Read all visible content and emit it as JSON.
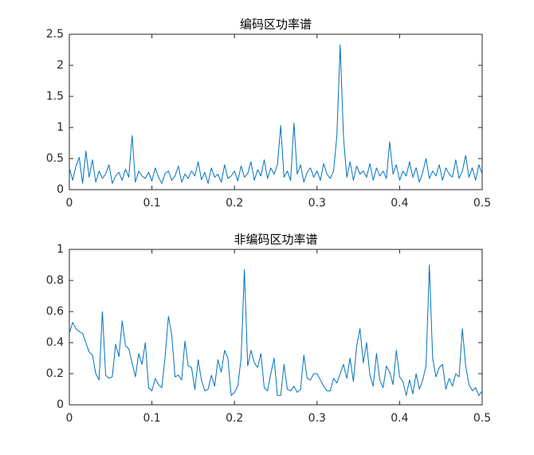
{
  "chart_data": [
    {
      "type": "line",
      "title": "编码区功率谱",
      "x": [
        0,
        0.004,
        0.008,
        0.012,
        0.016,
        0.02,
        0.024,
        0.028,
        0.032,
        0.036,
        0.04,
        0.044,
        0.048,
        0.052,
        0.056,
        0.06,
        0.064,
        0.068,
        0.072,
        0.076,
        0.08,
        0.084,
        0.088,
        0.092,
        0.096,
        0.1,
        0.104,
        0.108,
        0.112,
        0.116,
        0.12,
        0.124,
        0.128,
        0.132,
        0.136,
        0.14,
        0.144,
        0.148,
        0.152,
        0.156,
        0.16,
        0.164,
        0.168,
        0.172,
        0.176,
        0.18,
        0.184,
        0.188,
        0.192,
        0.196,
        0.2,
        0.204,
        0.208,
        0.212,
        0.216,
        0.22,
        0.224,
        0.228,
        0.232,
        0.236,
        0.24,
        0.244,
        0.248,
        0.252,
        0.256,
        0.26,
        0.264,
        0.268,
        0.272,
        0.276,
        0.28,
        0.284,
        0.288,
        0.292,
        0.296,
        0.3,
        0.304,
        0.308,
        0.312,
        0.316,
        0.32,
        0.324,
        0.328,
        0.332,
        0.336,
        0.34,
        0.344,
        0.348,
        0.352,
        0.356,
        0.36,
        0.364,
        0.368,
        0.372,
        0.376,
        0.38,
        0.384,
        0.388,
        0.392,
        0.396,
        0.4,
        0.404,
        0.408,
        0.412,
        0.416,
        0.42,
        0.424,
        0.428,
        0.432,
        0.436,
        0.44,
        0.444,
        0.448,
        0.452,
        0.456,
        0.46,
        0.464,
        0.468,
        0.472,
        0.476,
        0.48,
        0.484,
        0.488,
        0.492,
        0.496,
        0.5
      ],
      "values": [
        0.35,
        0.15,
        0.38,
        0.52,
        0.1,
        0.62,
        0.2,
        0.48,
        0.12,
        0.3,
        0.18,
        0.25,
        0.4,
        0.1,
        0.22,
        0.28,
        0.15,
        0.33,
        0.2,
        0.87,
        0.12,
        0.3,
        0.22,
        0.18,
        0.28,
        0.14,
        0.35,
        0.2,
        0.1,
        0.26,
        0.3,
        0.15,
        0.22,
        0.38,
        0.12,
        0.25,
        0.18,
        0.3,
        0.22,
        0.45,
        0.16,
        0.28,
        0.1,
        0.35,
        0.2,
        0.25,
        0.12,
        0.4,
        0.18,
        0.22,
        0.3,
        0.14,
        0.38,
        0.2,
        0.26,
        0.45,
        0.15,
        0.32,
        0.22,
        0.48,
        0.18,
        0.35,
        0.25,
        0.4,
        1.03,
        0.2,
        0.3,
        0.15,
        1.07,
        0.25,
        0.4,
        0.12,
        0.28,
        0.35,
        0.2,
        0.3,
        0.15,
        0.42,
        0.25,
        0.18,
        0.3,
        0.86,
        2.33,
        0.85,
        0.2,
        0.45,
        0.15,
        0.38,
        0.25,
        0.3,
        0.2,
        0.42,
        0.15,
        0.35,
        0.22,
        0.3,
        0.18,
        0.77,
        0.25,
        0.4,
        0.15,
        0.3,
        0.22,
        0.45,
        0.2,
        0.35,
        0.12,
        0.28,
        0.5,
        0.18,
        0.3,
        0.22,
        0.4,
        0.15,
        0.35,
        0.25,
        0.2,
        0.48,
        0.18,
        0.3,
        0.55,
        0.2,
        0.35,
        0.15,
        0.4,
        0.25
      ],
      "color": "#0072bd",
      "xlim": [
        0,
        0.5
      ],
      "xticks": [
        0,
        0.1,
        0.2,
        0.3,
        0.4,
        0.5
      ],
      "ylim": [
        0,
        2.5
      ],
      "yticks": [
        0,
        0.5,
        1,
        1.5,
        2,
        2.5
      ]
    },
    {
      "type": "line",
      "title": "非编码区功率谱",
      "x": [
        0,
        0.004,
        0.008,
        0.012,
        0.016,
        0.02,
        0.024,
        0.028,
        0.032,
        0.036,
        0.04,
        0.044,
        0.048,
        0.052,
        0.056,
        0.06,
        0.064,
        0.068,
        0.072,
        0.076,
        0.08,
        0.084,
        0.088,
        0.092,
        0.096,
        0.1,
        0.104,
        0.108,
        0.112,
        0.116,
        0.12,
        0.124,
        0.128,
        0.132,
        0.136,
        0.14,
        0.144,
        0.148,
        0.152,
        0.156,
        0.16,
        0.164,
        0.168,
        0.172,
        0.176,
        0.18,
        0.184,
        0.188,
        0.192,
        0.196,
        0.2,
        0.204,
        0.208,
        0.212,
        0.216,
        0.22,
        0.224,
        0.228,
        0.232,
        0.236,
        0.24,
        0.244,
        0.248,
        0.252,
        0.256,
        0.26,
        0.264,
        0.268,
        0.272,
        0.276,
        0.28,
        0.284,
        0.288,
        0.292,
        0.296,
        0.3,
        0.304,
        0.308,
        0.312,
        0.316,
        0.32,
        0.324,
        0.328,
        0.332,
        0.336,
        0.34,
        0.344,
        0.348,
        0.352,
        0.356,
        0.36,
        0.364,
        0.368,
        0.372,
        0.376,
        0.38,
        0.384,
        0.388,
        0.392,
        0.396,
        0.4,
        0.404,
        0.408,
        0.412,
        0.416,
        0.42,
        0.424,
        0.428,
        0.432,
        0.436,
        0.44,
        0.444,
        0.448,
        0.452,
        0.456,
        0.46,
        0.464,
        0.468,
        0.472,
        0.476,
        0.48,
        0.484,
        0.488,
        0.492,
        0.496,
        0.5
      ],
      "values": [
        0.46,
        0.53,
        0.49,
        0.47,
        0.46,
        0.4,
        0.34,
        0.32,
        0.2,
        0.16,
        0.6,
        0.19,
        0.17,
        0.18,
        0.39,
        0.31,
        0.54,
        0.38,
        0.36,
        0.27,
        0.18,
        0.33,
        0.26,
        0.4,
        0.11,
        0.09,
        0.17,
        0.13,
        0.11,
        0.31,
        0.57,
        0.45,
        0.18,
        0.19,
        0.16,
        0.41,
        0.25,
        0.24,
        0.1,
        0.29,
        0.16,
        0.09,
        0.1,
        0.19,
        0.12,
        0.29,
        0.21,
        0.35,
        0.3,
        0.06,
        0.08,
        0.12,
        0.3,
        0.87,
        0.25,
        0.35,
        0.27,
        0.24,
        0.33,
        0.11,
        0.09,
        0.2,
        0.3,
        0.06,
        0.06,
        0.26,
        0.1,
        0.09,
        0.12,
        0.08,
        0.1,
        0.32,
        0.17,
        0.16,
        0.2,
        0.2,
        0.16,
        0.12,
        0.09,
        0.09,
        0.17,
        0.14,
        0.2,
        0.26,
        0.17,
        0.3,
        0.15,
        0.38,
        0.49,
        0.27,
        0.4,
        0.19,
        0.12,
        0.33,
        0.16,
        0.11,
        0.25,
        0.21,
        0.13,
        0.35,
        0.18,
        0.15,
        0.06,
        0.16,
        0.07,
        0.2,
        0.1,
        0.16,
        0.25,
        0.9,
        0.3,
        0.18,
        0.24,
        0.26,
        0.1,
        0.17,
        0.12,
        0.2,
        0.18,
        0.49,
        0.25,
        0.13,
        0.09,
        0.11,
        0.06,
        0.09
      ],
      "color": "#0072bd",
      "xlim": [
        0,
        0.5
      ],
      "xticks": [
        0,
        0.1,
        0.2,
        0.3,
        0.4,
        0.5
      ],
      "ylim": [
        0,
        1
      ],
      "yticks": [
        0,
        0.2,
        0.4,
        0.6,
        0.8,
        1
      ]
    }
  ]
}
